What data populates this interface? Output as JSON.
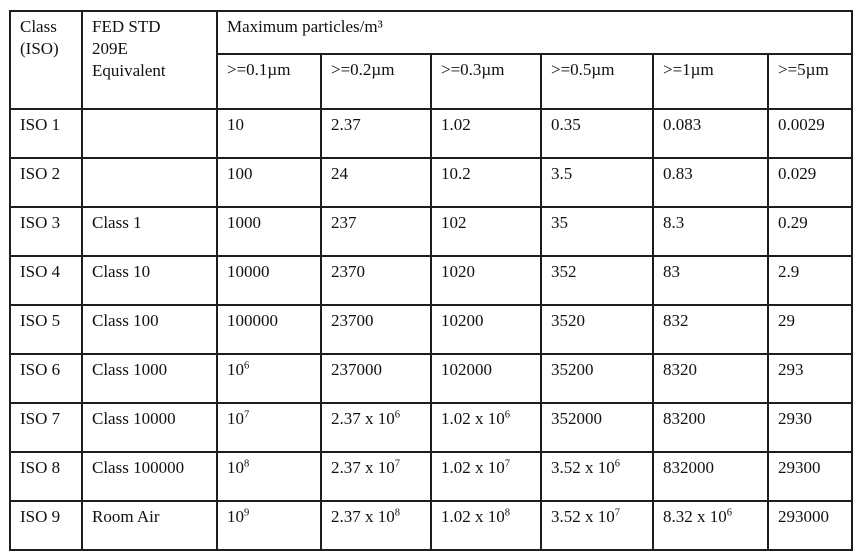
{
  "colors": {
    "background": "#ffffff",
    "border": "#1d1d1d",
    "text": "#101010"
  },
  "table": {
    "header": {
      "class_iso": "Class (ISO)",
      "class_iso_lines": [
        "Class",
        "(ISO)"
      ],
      "fed_std": "FED STD 209E Equivalent",
      "fed_std_lines": [
        "FED STD",
        "209E",
        "Equivalent"
      ],
      "max_particles": "Maximum particles/m³",
      "size_columns": [
        ">=0.1µm",
        ">=0.2µm",
        ">=0.3µm",
        ">=0.5µm",
        ">=1µm",
        ">=5µm"
      ]
    },
    "rows": [
      {
        "class_iso": "ISO 1",
        "fed_std": "",
        "values": [
          "10",
          "2.37",
          "1.02",
          "0.35",
          "0.083",
          "0.0029"
        ]
      },
      {
        "class_iso": "ISO 2",
        "fed_std": "",
        "values": [
          "100",
          "24",
          "10.2",
          "3.5",
          "0.83",
          "0.029"
        ]
      },
      {
        "class_iso": "ISO 3",
        "fed_std": "Class 1",
        "values": [
          "1000",
          "237",
          "102",
          "35",
          "8.3",
          "0.29"
        ]
      },
      {
        "class_iso": "ISO 4",
        "fed_std": "Class 10",
        "values": [
          "10000",
          "2370",
          "1020",
          "352",
          "83",
          "2.9"
        ]
      },
      {
        "class_iso": "ISO 5",
        "fed_std": "Class 100",
        "values": [
          "100000",
          "23700",
          "10200",
          "3520",
          "832",
          "29"
        ]
      },
      {
        "class_iso": "ISO 6",
        "fed_std": "Class 1000",
        "values": [
          "10^6",
          "237000",
          "102000",
          "35200",
          "8320",
          "293"
        ]
      },
      {
        "class_iso": "ISO 7",
        "fed_std": "Class 10000",
        "values": [
          "10^7",
          "2.37 x 10^6",
          "1.02 x 10^6",
          "352000",
          "83200",
          "2930"
        ]
      },
      {
        "class_iso": "ISO 8",
        "fed_std": "Class 100000",
        "values": [
          "10^8",
          "2.37 x 10^7",
          "1.02 x 10^7",
          "3.52 x 10^6",
          "832000",
          "29300"
        ]
      },
      {
        "class_iso": "ISO 9",
        "fed_std": "Room Air",
        "values": [
          "10^9",
          "2.37 x 10^8",
          "1.02 x 10^8",
          "3.52 x 10^7",
          "8.32 x 10^6",
          "293000"
        ]
      }
    ]
  }
}
